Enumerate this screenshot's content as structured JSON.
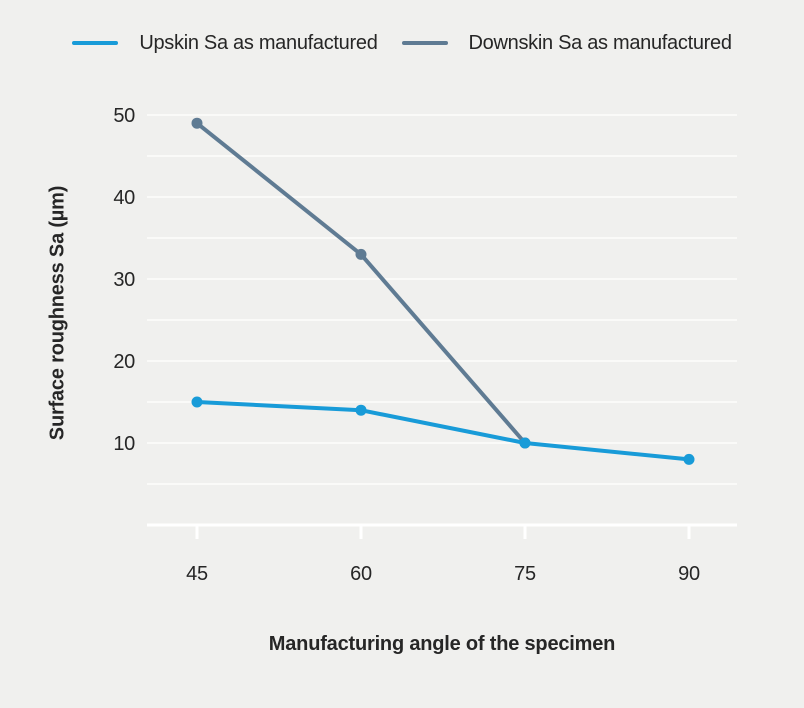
{
  "colors": {
    "background": "#f0f0ee",
    "gridline": "#fafaf8",
    "axis_line": "#ffffff",
    "text": "#262626",
    "upskin_blue": "#189bd8",
    "downskin_gray": "#5f7b93"
  },
  "legend": {
    "items": [
      {
        "label": "Upskin Sa as manufactured",
        "color": "#189bd8"
      },
      {
        "label": "Downskin Sa as manufactured",
        "color": "#5f7b93"
      }
    ]
  },
  "chart_data": {
    "type": "line",
    "x": [
      45,
      60,
      75,
      90
    ],
    "series": [
      {
        "name": "Downskin Sa as manufactured",
        "color": "#5f7b93",
        "values": [
          49,
          33,
          10,
          null
        ]
      },
      {
        "name": "Upskin Sa as manufactured",
        "color": "#189bd8",
        "values": [
          15,
          14,
          10,
          8
        ]
      }
    ],
    "title": "",
    "xlabel": "Manufacturing angle of the specimen",
    "ylabel": "Surface roughness Sa (µm)",
    "ylim": [
      0,
      50
    ],
    "grid_step": 5,
    "yticks_labeled": [
      10,
      20,
      30,
      40,
      50
    ],
    "grid": "horizontal-only",
    "legend_position": "top-center",
    "marker": "circle"
  }
}
